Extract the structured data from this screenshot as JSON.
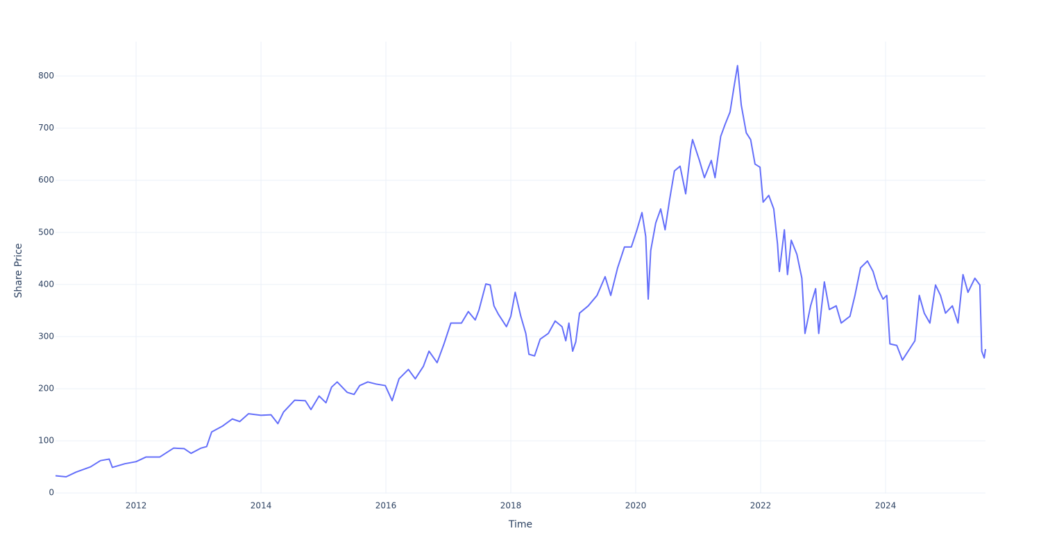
{
  "chart_data": {
    "type": "line",
    "x_label": "Time",
    "y_label": "Share Price",
    "x": [
      2010.71,
      2010.88,
      2011.04,
      2011.27,
      2011.43,
      2011.57,
      2011.62,
      2011.82,
      2012.0,
      2012.16,
      2012.38,
      2012.6,
      2012.77,
      2012.88,
      2013.04,
      2013.13,
      2013.21,
      2013.38,
      2013.54,
      2013.66,
      2013.8,
      2014.0,
      2014.16,
      2014.27,
      2014.36,
      2014.54,
      2014.71,
      2014.8,
      2014.93,
      2015.04,
      2015.13,
      2015.22,
      2015.38,
      2015.49,
      2015.58,
      2015.71,
      2015.84,
      2015.99,
      2016.1,
      2016.21,
      2016.36,
      2016.47,
      2016.6,
      2016.69,
      2016.82,
      2016.93,
      2017.04,
      2017.21,
      2017.32,
      2017.43,
      2017.49,
      2017.6,
      2017.67,
      2017.73,
      2017.8,
      2017.93,
      2018.0,
      2018.07,
      2018.16,
      2018.24,
      2018.29,
      2018.38,
      2018.47,
      2018.6,
      2018.71,
      2018.82,
      2018.88,
      2018.93,
      2018.99,
      2019.04,
      2019.1,
      2019.24,
      2019.38,
      2019.51,
      2019.6,
      2019.71,
      2019.82,
      2019.93,
      2020.02,
      2020.1,
      2020.16,
      2020.2,
      2020.24,
      2020.32,
      2020.4,
      2020.47,
      2020.54,
      2020.62,
      2020.71,
      2020.8,
      2020.88,
      2020.91,
      2021.02,
      2021.1,
      2021.21,
      2021.27,
      2021.36,
      2021.43,
      2021.51,
      2021.58,
      2021.63,
      2021.69,
      2021.77,
      2021.84,
      2021.91,
      2021.99,
      2022.04,
      2022.13,
      2022.21,
      2022.27,
      2022.3,
      2022.38,
      2022.43,
      2022.49,
      2022.58,
      2022.66,
      2022.71,
      2022.8,
      2022.88,
      2022.93,
      2023.02,
      2023.1,
      2023.21,
      2023.29,
      2023.43,
      2023.51,
      2023.6,
      2023.71,
      2023.8,
      2023.88,
      2023.96,
      2024.02,
      2024.07,
      2024.18,
      2024.27,
      2024.4,
      2024.47,
      2024.54,
      2024.62,
      2024.71,
      2024.8,
      2024.88,
      2024.96,
      2025.07,
      2025.16,
      2025.24,
      2025.32,
      2025.43,
      2025.51,
      2025.54,
      2025.58,
      2025.6
    ],
    "series": [
      {
        "name": "Share Price",
        "color": "#636efa",
        "values": [
          33,
          31,
          40,
          50,
          62,
          65,
          49,
          56,
          60,
          69,
          69,
          86,
          85,
          76,
          86,
          89,
          117,
          128,
          142,
          137,
          152,
          149,
          150,
          133,
          155,
          178,
          177,
          160,
          186,
          173,
          203,
          213,
          193,
          189,
          206,
          213,
          209,
          206,
          177,
          219,
          237,
          219,
          243,
          272,
          250,
          286,
          326,
          326,
          348,
          332,
          351,
          401,
          399,
          359,
          343,
          319,
          339,
          385,
          339,
          306,
          266,
          263,
          295,
          306,
          330,
          319,
          292,
          326,
          272,
          290,
          345,
          359,
          379,
          415,
          379,
          432,
          472,
          472,
          505,
          538,
          492,
          372,
          465,
          518,
          545,
          505,
          561,
          618,
          627,
          574,
          658,
          678,
          638,
          605,
          638,
          605,
          684,
          707,
          731,
          784,
          820,
          744,
          691,
          678,
          631,
          625,
          558,
          571,
          545,
          478,
          425,
          505,
          419,
          485,
          458,
          412,
          306,
          359,
          392,
          306,
          405,
          352,
          359,
          326,
          339,
          379,
          432,
          445,
          425,
          392,
          372,
          379,
          286,
          283,
          255,
          279,
          292,
          379,
          345,
          326,
          399,
          379,
          345,
          359,
          326,
          419,
          385,
          412,
          399,
          272,
          259,
          276
        ]
      }
    ],
    "xlim": [
      2010.71,
      2025.6
    ],
    "xticks": [
      2012,
      2014,
      2016,
      2018,
      2020,
      2022,
      2024
    ],
    "ylim": [
      -1,
      866
    ],
    "yticks": [
      0,
      100,
      200,
      300,
      400,
      500,
      600,
      700,
      800
    ],
    "grid": true
  }
}
